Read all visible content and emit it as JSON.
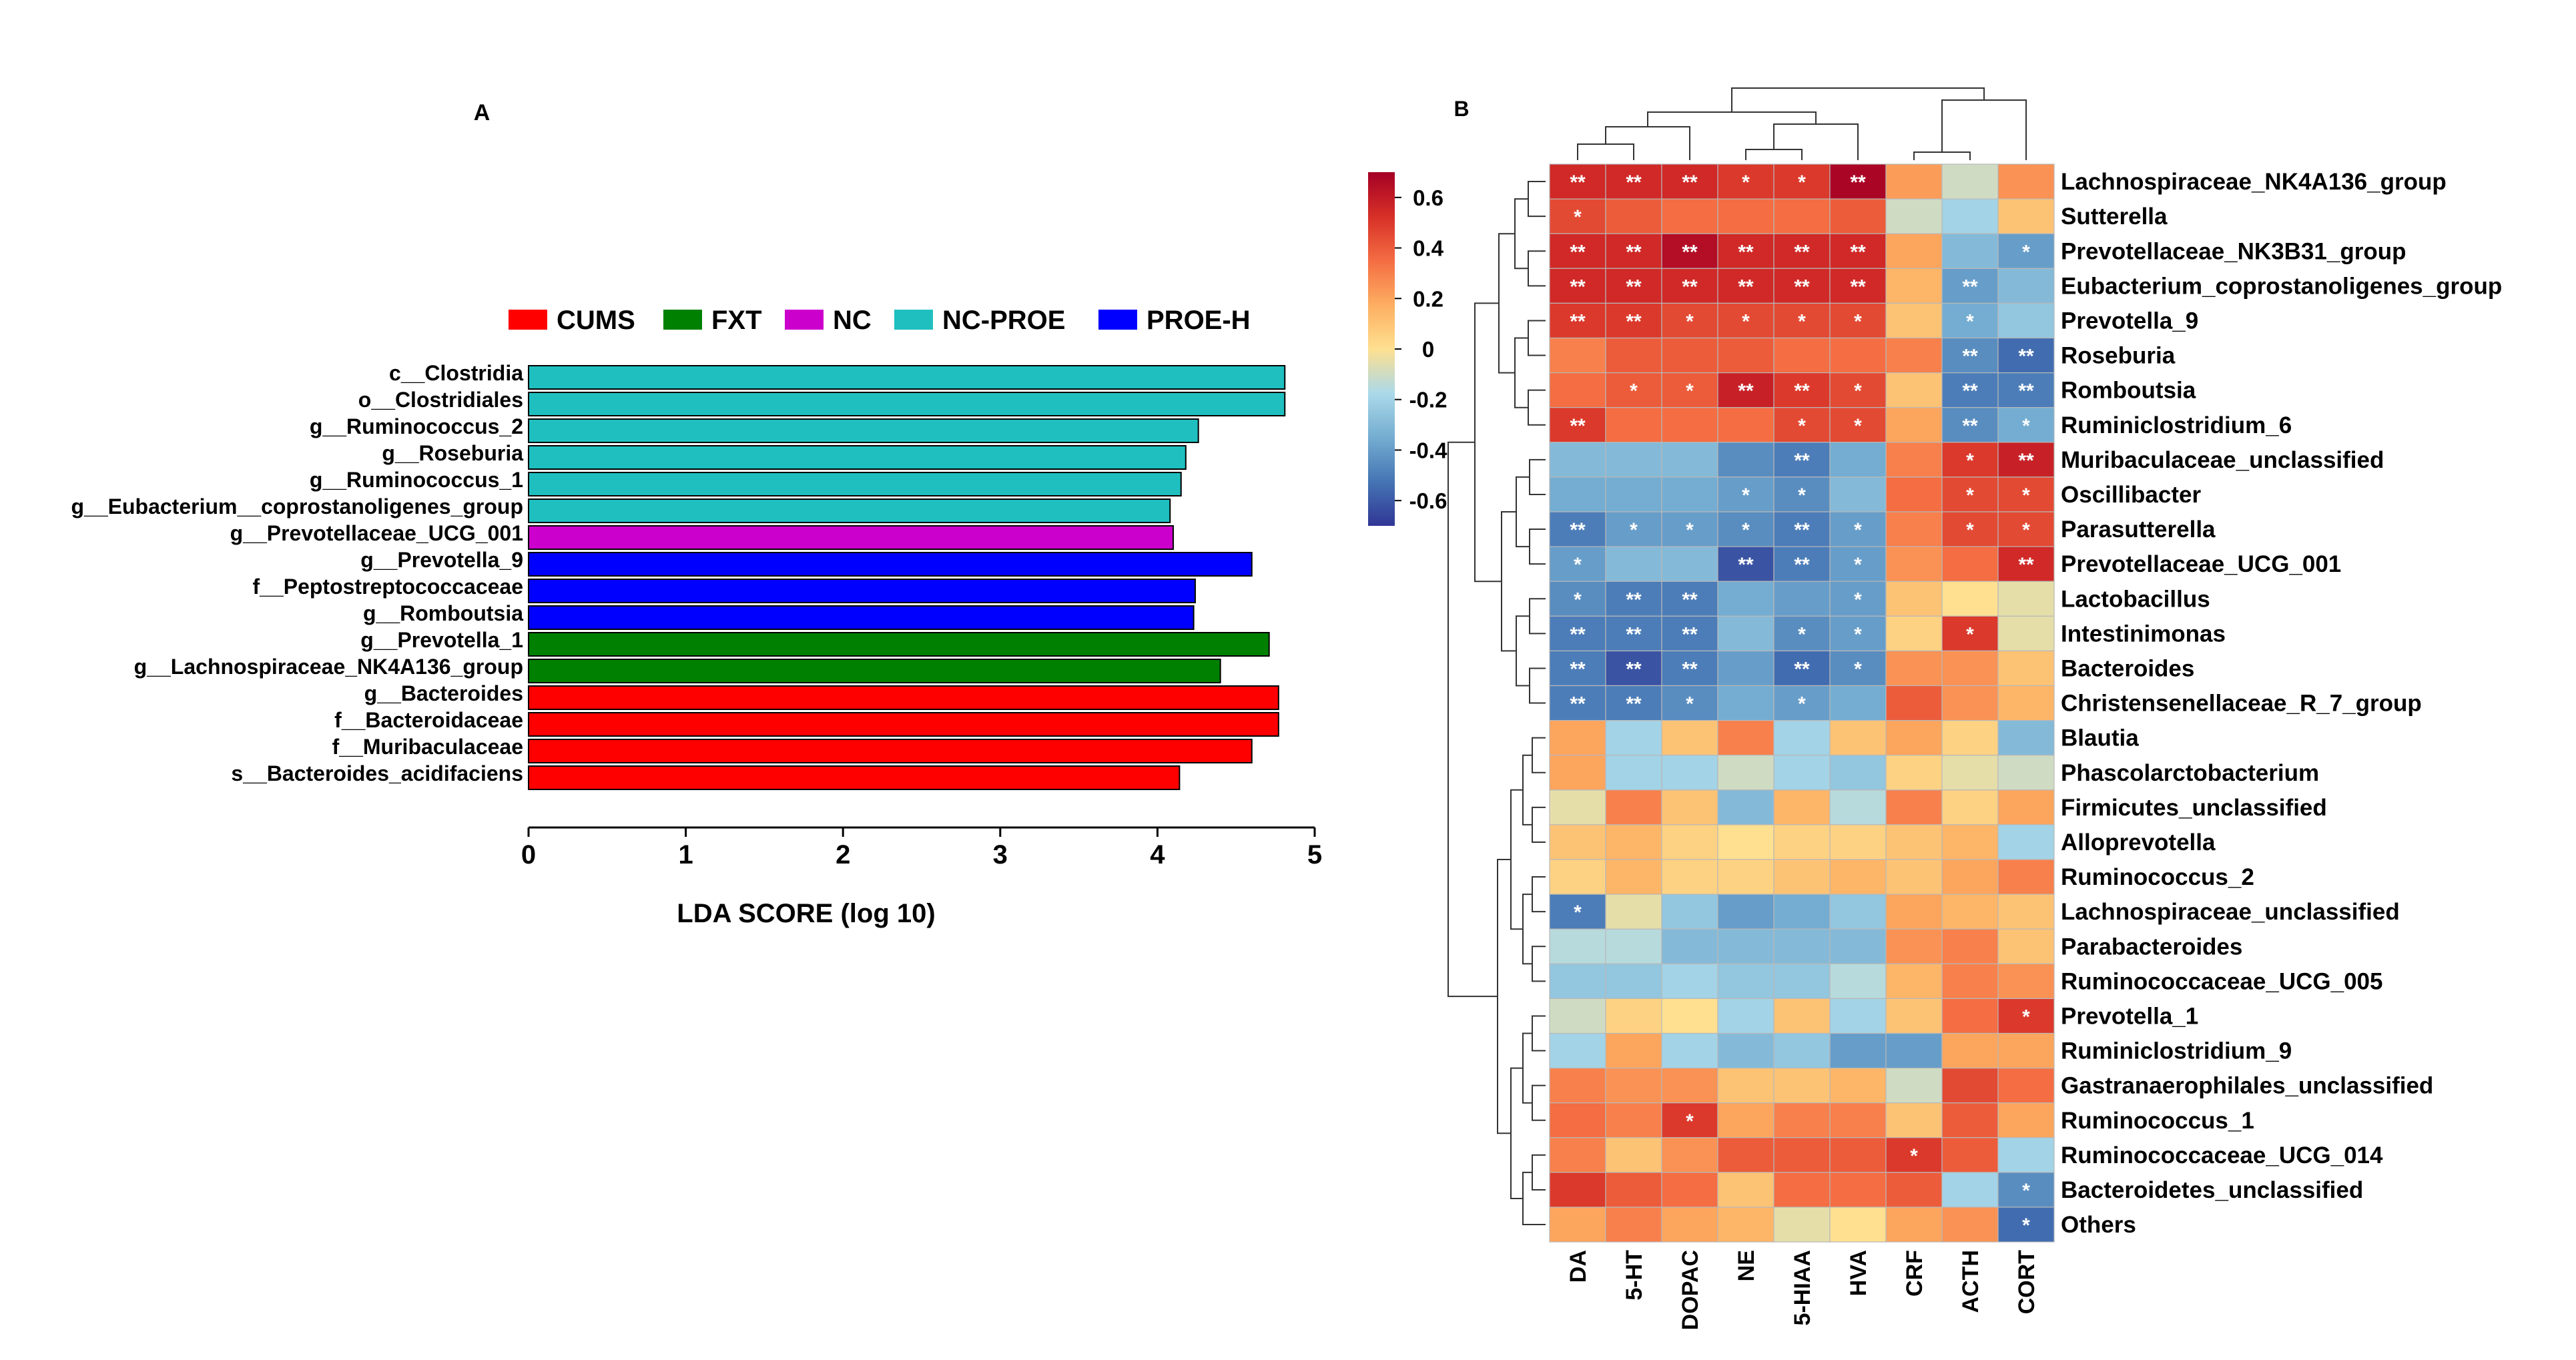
{
  "chart_data": [
    {
      "panel_label": "A",
      "type": "bar",
      "orientation": "horizontal",
      "xlabel": "LDA SCORE (log 10)",
      "xlim": [
        0,
        5
      ],
      "xticks": [
        "0",
        "1",
        "2",
        "3",
        "4",
        "5"
      ],
      "legend_position": "top",
      "legend": [
        {
          "name": "CUMS",
          "color": "#ff0000"
        },
        {
          "name": "FXT",
          "color": "#008000"
        },
        {
          "name": "NC",
          "color": "#cc00cc"
        },
        {
          "name": "NC-PROE",
          "color": "#1fbfbf"
        },
        {
          "name": "PROE-H",
          "color": "#0000ff"
        }
      ],
      "bars": [
        {
          "label": "c__Clostridia",
          "value": 4.81,
          "group": "NC-PROE"
        },
        {
          "label": "o__Clostridiales",
          "value": 4.81,
          "group": "NC-PROE"
        },
        {
          "label": "g__Ruminococcus_2",
          "value": 4.26,
          "group": "NC-PROE"
        },
        {
          "label": "g__Roseburia",
          "value": 4.18,
          "group": "NC-PROE"
        },
        {
          "label": "g__Ruminococcus_1",
          "value": 4.15,
          "group": "NC-PROE"
        },
        {
          "label": "g__Eubacterium__coprostanoligenes_group",
          "value": 4.08,
          "group": "NC-PROE"
        },
        {
          "label": "g__Prevotellaceae_UCG_001",
          "value": 4.1,
          "group": "NC"
        },
        {
          "label": "g__Prevotella_9",
          "value": 4.6,
          "group": "PROE-H"
        },
        {
          "label": "f__Peptostreptococcaceae",
          "value": 4.24,
          "group": "PROE-H"
        },
        {
          "label": "g__Romboutsia",
          "value": 4.23,
          "group": "PROE-H"
        },
        {
          "label": "g__Prevotella_1",
          "value": 4.71,
          "group": "FXT"
        },
        {
          "label": "g__Lachnospiraceae_NK4A136_group",
          "value": 4.4,
          "group": "FXT"
        },
        {
          "label": "g__Bacteroides",
          "value": 4.77,
          "group": "CUMS"
        },
        {
          "label": "f__Bacteroidaceae",
          "value": 4.77,
          "group": "CUMS"
        },
        {
          "label": "f__Muribaculaceae",
          "value": 4.6,
          "group": "CUMS"
        },
        {
          "label": "s__Bacteroides_acidifaciens",
          "value": 4.14,
          "group": "CUMS"
        }
      ]
    },
    {
      "panel_label": "B",
      "type": "heatmap",
      "columns": [
        "DA",
        "5-HT",
        "DOPAC",
        "NE",
        "5-HIAA",
        "HVA",
        "CRF",
        "ACTH",
        "CORT"
      ],
      "rows": [
        "Lachnospiraceae_NK4A136_group",
        "Sutterella",
        "Prevotellaceae_NK3B31_group",
        "Eubacterium_coprostanoligenes_group",
        "Prevotella_9",
        "Roseburia",
        "Romboutsia",
        "Ruminiclostridium_6",
        "Muribaculaceae_unclassified",
        "Oscillibacter",
        "Parasutterella",
        "Prevotellaceae_UCG_001",
        "Lactobacillus",
        "Intestinimonas",
        "Bacteroides",
        "Christensenellaceae_R_7_group",
        "Blautia",
        "Phascolarctobacterium",
        "Firmicutes_unclassified",
        "Alloprevotella",
        "Ruminococcus_2",
        "Lachnospiraceae_unclassified",
        "Parabacteroides",
        "Ruminococcaceae_UCG_005",
        "Prevotella_1",
        "Ruminiclostridium_9",
        "Gastranaerophilales_unclassified",
        "Ruminococcus_1",
        "Ruminococcaceae_UCG_014",
        "Bacteroidetes_unclassified",
        "Others"
      ],
      "values": [
        [
          0.55,
          0.55,
          0.55,
          0.5,
          0.5,
          0.68,
          0.22,
          -0.1,
          0.25
        ],
        [
          0.45,
          0.4,
          0.35,
          0.35,
          0.35,
          0.4,
          -0.1,
          -0.2,
          0.1
        ],
        [
          0.55,
          0.55,
          0.65,
          0.55,
          0.55,
          0.55,
          0.2,
          -0.3,
          -0.4
        ],
        [
          0.55,
          0.55,
          0.55,
          0.55,
          0.55,
          0.55,
          0.15,
          -0.4,
          -0.3
        ],
        [
          0.5,
          0.5,
          0.45,
          0.45,
          0.45,
          0.45,
          0.1,
          -0.35,
          -0.25
        ],
        [
          0.3,
          0.4,
          0.4,
          0.4,
          0.35,
          0.35,
          0.3,
          -0.45,
          -0.55
        ],
        [
          0.35,
          0.4,
          0.4,
          0.58,
          0.5,
          0.45,
          0.1,
          -0.5,
          -0.5
        ],
        [
          0.5,
          0.35,
          0.35,
          0.35,
          0.45,
          0.45,
          0.2,
          -0.45,
          -0.35
        ],
        [
          -0.3,
          -0.3,
          -0.3,
          -0.45,
          -0.5,
          -0.35,
          0.3,
          0.5,
          0.58
        ],
        [
          -0.35,
          -0.35,
          -0.35,
          -0.4,
          -0.45,
          -0.3,
          0.35,
          0.45,
          0.45
        ],
        [
          -0.5,
          -0.4,
          -0.4,
          -0.45,
          -0.5,
          -0.4,
          0.3,
          0.45,
          0.45
        ],
        [
          -0.4,
          -0.3,
          -0.3,
          -0.62,
          -0.5,
          -0.4,
          0.25,
          0.35,
          0.55
        ],
        [
          -0.45,
          -0.5,
          -0.5,
          -0.35,
          -0.4,
          -0.4,
          0.1,
          0.0,
          -0.05
        ],
        [
          -0.5,
          -0.5,
          -0.5,
          -0.3,
          -0.45,
          -0.4,
          0.05,
          0.5,
          -0.05
        ],
        [
          -0.5,
          -0.62,
          -0.5,
          -0.4,
          -0.55,
          -0.45,
          0.25,
          0.25,
          0.1
        ],
        [
          -0.5,
          -0.5,
          -0.45,
          -0.35,
          -0.4,
          -0.35,
          0.4,
          0.25,
          0.15
        ],
        [
          0.2,
          -0.2,
          0.1,
          0.3,
          -0.2,
          0.1,
          0.2,
          0.05,
          -0.3
        ],
        [
          0.2,
          -0.2,
          -0.2,
          -0.1,
          -0.2,
          -0.25,
          0.05,
          -0.05,
          -0.1
        ],
        [
          -0.05,
          0.3,
          0.1,
          -0.3,
          0.15,
          -0.15,
          0.3,
          0.05,
          0.2
        ],
        [
          0.1,
          0.15,
          0.05,
          0.0,
          0.05,
          0.05,
          0.1,
          0.15,
          -0.2
        ],
        [
          0.05,
          0.15,
          0.05,
          0.05,
          0.1,
          0.15,
          0.1,
          0.2,
          0.3
        ],
        [
          -0.5,
          -0.05,
          -0.25,
          -0.4,
          -0.35,
          -0.25,
          0.2,
          0.15,
          0.1
        ],
        [
          -0.15,
          -0.15,
          -0.3,
          -0.3,
          -0.3,
          -0.3,
          0.25,
          0.3,
          0.1
        ],
        [
          -0.25,
          -0.25,
          -0.2,
          -0.25,
          -0.25,
          -0.15,
          0.15,
          0.3,
          0.25
        ],
        [
          -0.1,
          0.05,
          0.0,
          -0.2,
          0.1,
          -0.2,
          0.1,
          0.35,
          0.5
        ],
        [
          -0.2,
          0.2,
          -0.2,
          -0.3,
          -0.25,
          -0.4,
          -0.4,
          0.2,
          0.2
        ],
        [
          0.3,
          0.25,
          0.25,
          0.1,
          0.1,
          0.15,
          -0.1,
          0.45,
          0.35
        ],
        [
          0.35,
          0.3,
          0.5,
          0.2,
          0.3,
          0.3,
          0.1,
          0.4,
          0.2
        ],
        [
          0.3,
          0.1,
          0.25,
          0.4,
          0.4,
          0.4,
          0.5,
          0.4,
          -0.2
        ],
        [
          0.5,
          0.4,
          0.35,
          0.1,
          0.35,
          0.35,
          0.4,
          -0.2,
          -0.45
        ],
        [
          0.2,
          0.3,
          0.2,
          0.15,
          -0.05,
          0.0,
          0.2,
          0.25,
          -0.55
        ]
      ],
      "significance": [
        [
          "**",
          "**",
          "**",
          "*",
          "*",
          "**",
          "",
          "",
          ""
        ],
        [
          "*",
          "",
          "",
          "",
          "",
          "",
          "",
          "",
          ""
        ],
        [
          "**",
          "**",
          "**",
          "**",
          "**",
          "**",
          "",
          "",
          "*"
        ],
        [
          "**",
          "**",
          "**",
          "**",
          "**",
          "**",
          "",
          "**",
          ""
        ],
        [
          "**",
          "**",
          "*",
          "*",
          "*",
          "*",
          "",
          "*",
          ""
        ],
        [
          "",
          "",
          "",
          "",
          "",
          "",
          "",
          "**",
          "**"
        ],
        [
          "",
          "*",
          "*",
          "**",
          "**",
          "*",
          "",
          "**",
          "**"
        ],
        [
          "**",
          "",
          "",
          "",
          "*",
          "*",
          "",
          "**",
          "*"
        ],
        [
          "",
          "",
          "",
          "",
          "**",
          "",
          "",
          "*",
          "**"
        ],
        [
          "",
          "",
          "",
          "*",
          "*",
          "",
          "",
          "*",
          "*"
        ],
        [
          "**",
          "*",
          "*",
          "*",
          "**",
          "*",
          "",
          "*",
          "*"
        ],
        [
          "*",
          "",
          "",
          "**",
          "**",
          "*",
          "",
          "",
          "**"
        ],
        [
          "*",
          "**",
          "**",
          "",
          "",
          "*",
          "",
          "",
          ""
        ],
        [
          "**",
          "**",
          "**",
          "",
          "*",
          "*",
          "",
          "*",
          ""
        ],
        [
          "**",
          "**",
          "**",
          "",
          "**",
          "*",
          "",
          "",
          ""
        ],
        [
          "**",
          "**",
          "*",
          "",
          "*",
          "",
          "",
          "",
          ""
        ],
        [
          "",
          "",
          "",
          "",
          "",
          "",
          "",
          "",
          ""
        ],
        [
          "",
          "",
          "",
          "",
          "",
          "",
          "",
          "",
          ""
        ],
        [
          "",
          "",
          "",
          "",
          "",
          "",
          "",
          "",
          ""
        ],
        [
          "",
          "",
          "",
          "",
          "",
          "",
          "",
          "",
          ""
        ],
        [
          "",
          "",
          "",
          "",
          "",
          "",
          "",
          "",
          ""
        ],
        [
          "*",
          "",
          "",
          "",
          "",
          "",
          "",
          "",
          ""
        ],
        [
          "",
          "",
          "",
          "",
          "",
          "",
          "",
          "",
          ""
        ],
        [
          "",
          "",
          "",
          "",
          "",
          "",
          "",
          "",
          ""
        ],
        [
          "",
          "",
          "",
          "",
          "",
          "",
          "",
          "",
          "*"
        ],
        [
          "",
          "",
          "",
          "",
          "",
          "",
          "",
          "",
          ""
        ],
        [
          "",
          "",
          "",
          "",
          "",
          "",
          "",
          "",
          ""
        ],
        [
          "",
          "",
          "*",
          "",
          "",
          "",
          "",
          "",
          ""
        ],
        [
          "",
          "",
          "",
          "",
          "",
          "",
          "*",
          "",
          ""
        ],
        [
          "",
          "",
          "",
          "",
          "",
          "",
          "",
          "",
          "*"
        ],
        [
          "",
          "",
          "",
          "",
          "",
          "",
          "",
          "",
          "*"
        ]
      ],
      "colorbar": {
        "range": [
          -0.7,
          0.7
        ],
        "ticks": [
          "0.6",
          "0.4",
          "0.2",
          "0",
          "-0.2",
          "-0.4",
          "-0.6"
        ],
        "tick_values": [
          0.6,
          0.4,
          0.2,
          0,
          -0.2,
          -0.4,
          -0.6
        ],
        "colors": [
          "#313695",
          "#4575b4",
          "#74add1",
          "#abd9e9",
          "#fee090",
          "#fdae61",
          "#f46d43",
          "#d73027",
          "#a50026"
        ]
      }
    }
  ]
}
